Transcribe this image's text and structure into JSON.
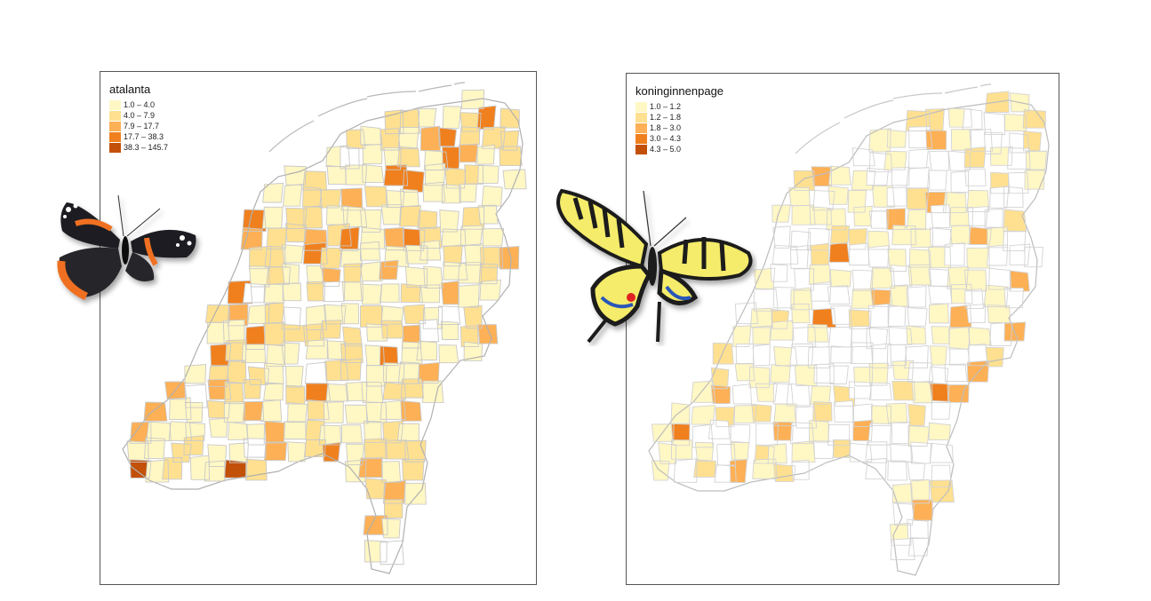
{
  "maps": [
    {
      "legend_title": "atalanta",
      "classes": [
        {
          "label": "1.0 – 4.0",
          "color": "#fff7c4"
        },
        {
          "label": "4.0 – 7.9",
          "color": "#fee090"
        },
        {
          "label": "7.9 – 17.7",
          "color": "#fdb055"
        },
        {
          "label": "17.7 – 38.3",
          "color": "#f0801e"
        },
        {
          "label": "38.3 – 145.7",
          "color": "#c35008"
        }
      ],
      "boundary_color": "#b8b8b8",
      "butterfly_icon": "red-admiral-butterfly"
    },
    {
      "legend_title": "koninginnenpage",
      "classes": [
        {
          "label": "1.0 – 1.2",
          "color": "#fff7c4"
        },
        {
          "label": "1.2 – 1.8",
          "color": "#fee090"
        },
        {
          "label": "1.8 – 3.0",
          "color": "#fdb055"
        },
        {
          "label": "3.0 – 4.3",
          "color": "#f0801e"
        },
        {
          "label": "4.3 – 5.0",
          "color": "#c35008"
        }
      ],
      "boundary_color": "#c8c8c8",
      "butterfly_icon": "swallowtail-butterfly"
    }
  ]
}
